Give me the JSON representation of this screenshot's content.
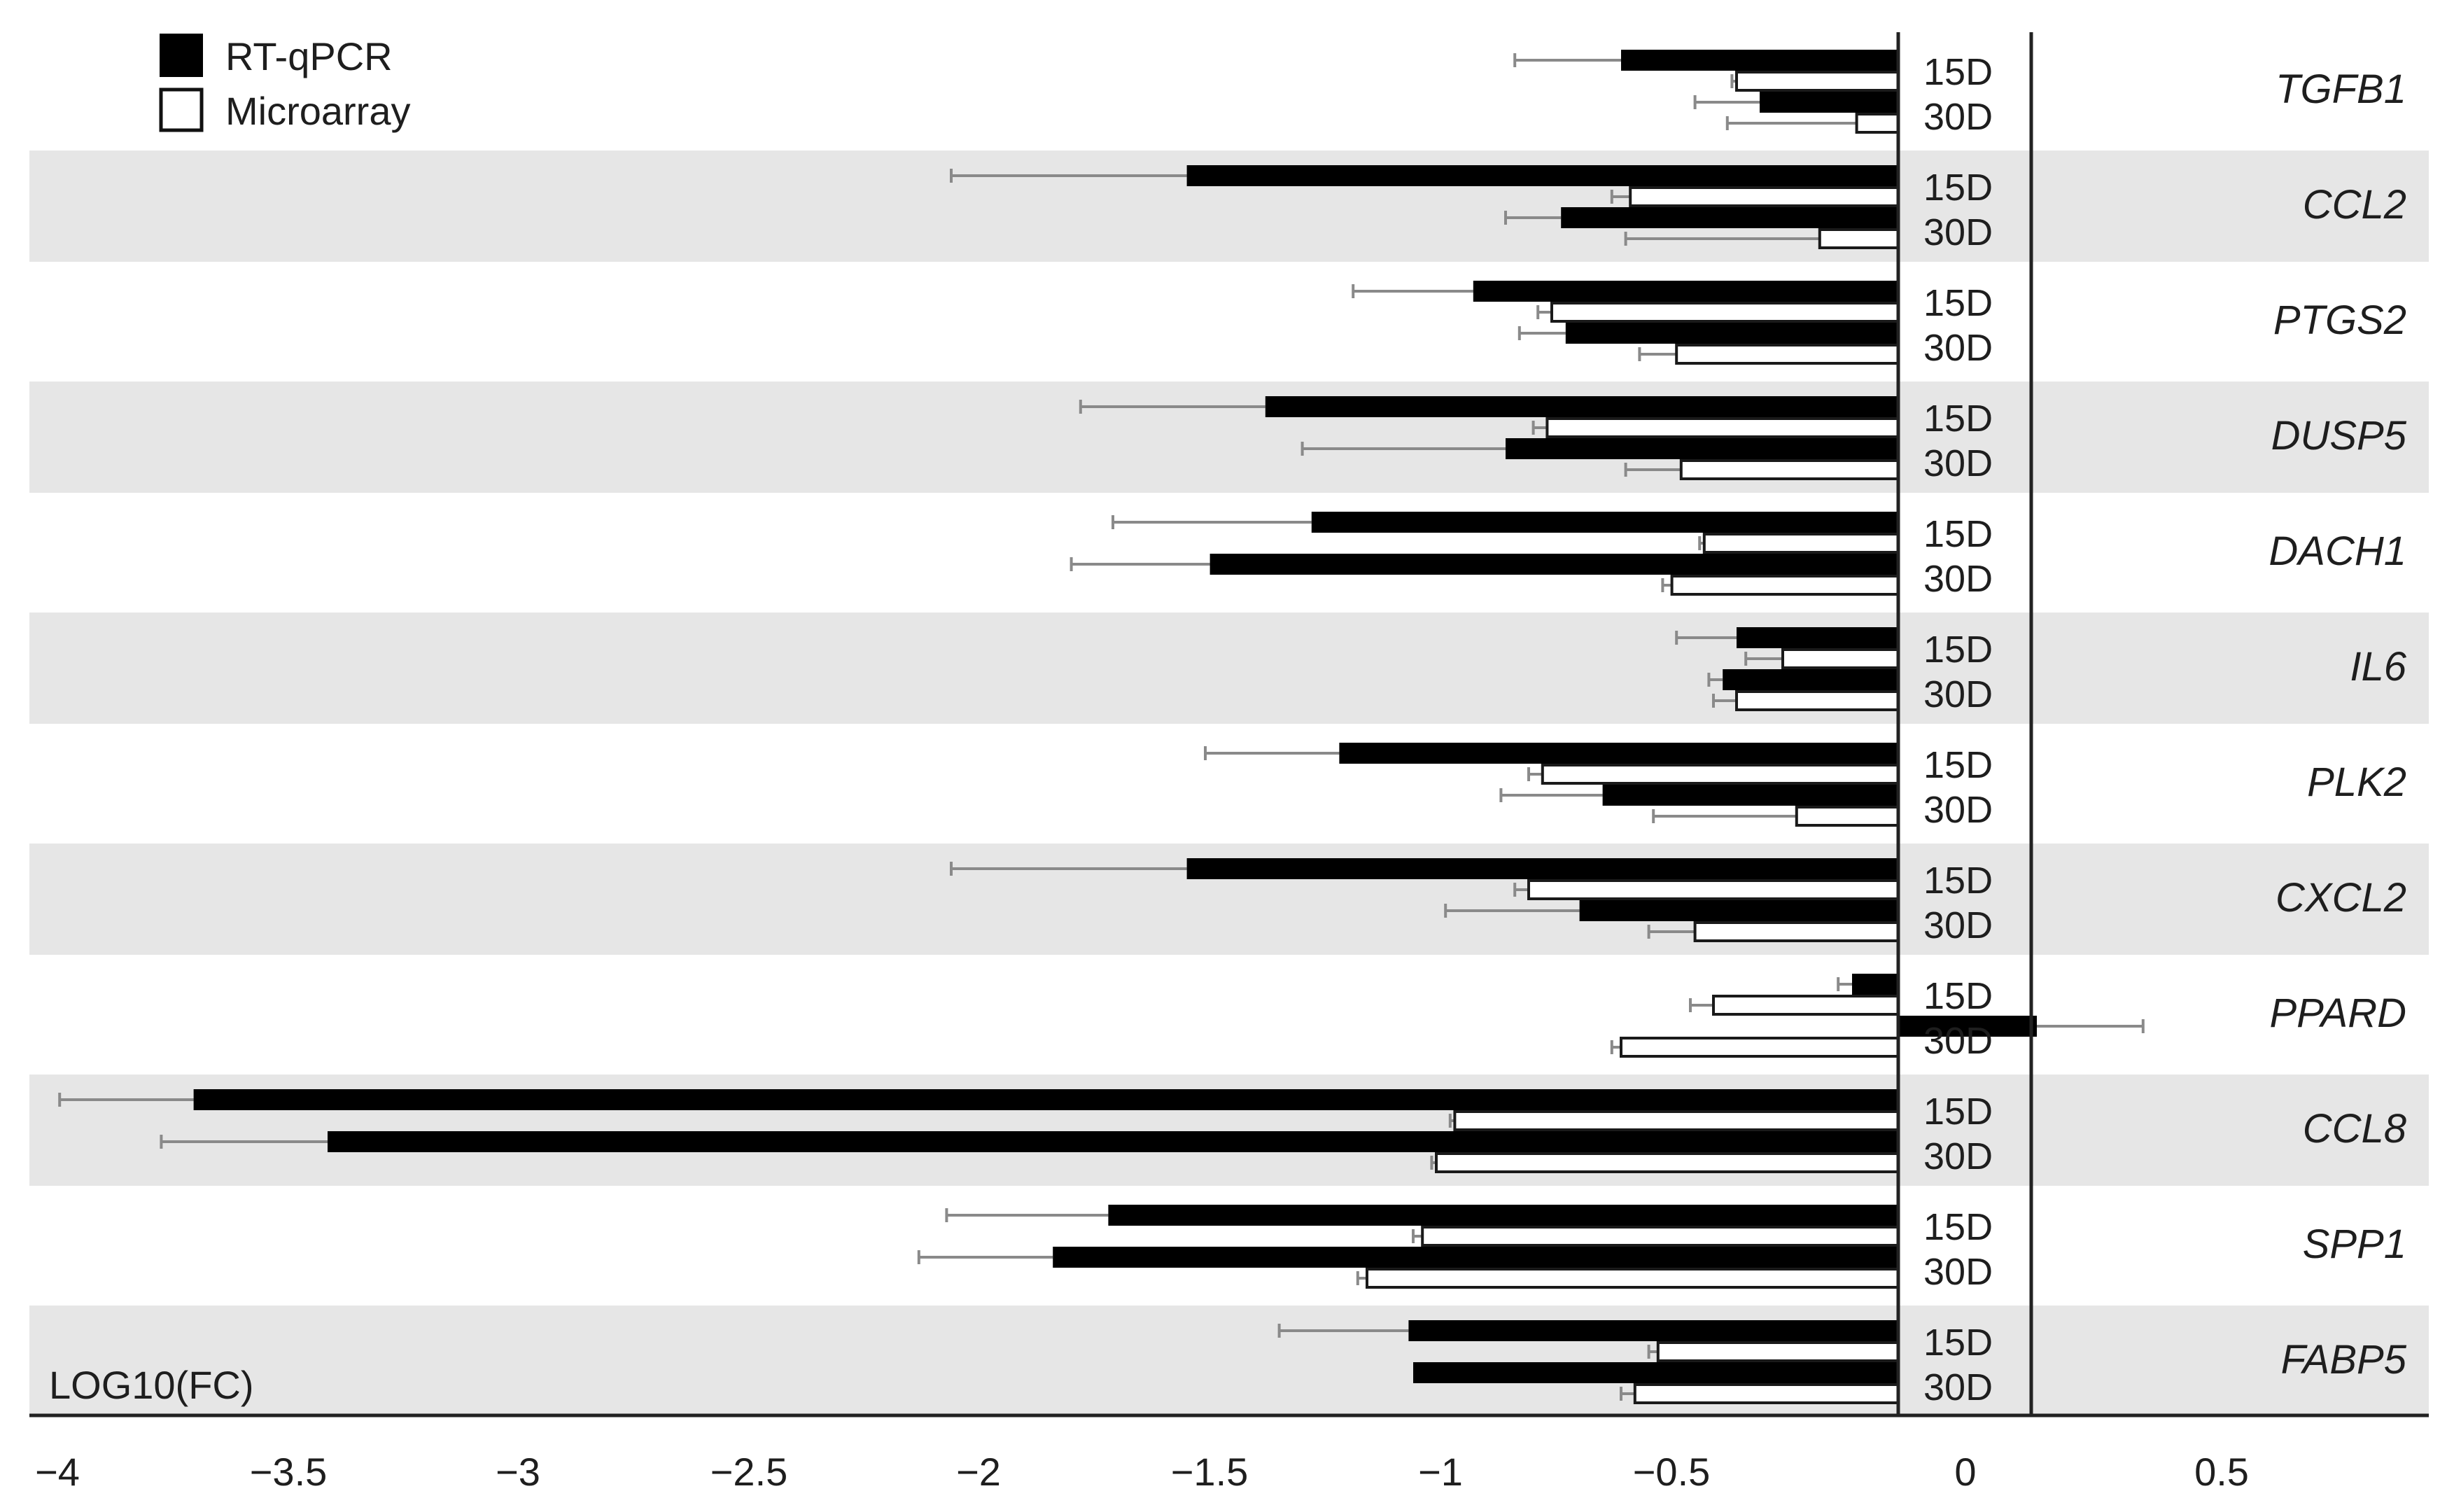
{
  "chart_data": {
    "type": "bar",
    "orientation": "horizontal",
    "xlabel": "LOG10(FC)",
    "xlim": [
      -4,
      0.86
    ],
    "xticks": [
      "-4",
      "-3.5",
      "-3",
      "-2.5",
      "-2",
      "-1.5",
      "-1",
      "-0.5",
      "0",
      "0.5"
    ],
    "xtick_values": [
      -4,
      -3.5,
      -3,
      -2.5,
      -2,
      -1.5,
      -1,
      -0.5,
      0,
      0.5
    ],
    "day_labels": [
      "15D",
      "30D"
    ],
    "row_shading": "alternating light gray",
    "legend": {
      "position": "top-left",
      "entries": [
        {
          "label": "RT-qPCR",
          "color": "#000000"
        },
        {
          "label": "Microarray",
          "color": "#ffffff"
        }
      ]
    },
    "series": [
      {
        "name": "RT-qPCR",
        "color": "#000000"
      },
      {
        "name": "Microarray",
        "color": "#ffffff"
      }
    ],
    "genes": [
      {
        "name": "TGFB1",
        "rt_qpcr": {
          "15D": -0.6,
          "30D": -0.3
        },
        "rt_qpcr_err": {
          "15D": 0.23,
          "30D": 0.14
        },
        "microarray": {
          "15D": -0.35,
          "30D": -0.09
        },
        "microarray_err": {
          "15D": 0.01,
          "30D": 0.28
        }
      },
      {
        "name": "CCL2",
        "rt_qpcr": {
          "15D": -1.54,
          "30D": -0.73
        },
        "rt_qpcr_err": {
          "15D": 0.51,
          "30D": 0.12
        },
        "microarray": {
          "15D": -0.58,
          "30D": -0.17
        },
        "microarray_err": {
          "15D": 0.04,
          "30D": 0.42
        }
      },
      {
        "name": "PTGS2",
        "rt_qpcr": {
          "15D": -0.92,
          "30D": -0.72
        },
        "rt_qpcr_err": {
          "15D": 0.26,
          "30D": 0.1
        },
        "microarray": {
          "15D": -0.75,
          "30D": -0.48
        },
        "microarray_err": {
          "15D": 0.03,
          "30D": 0.08
        }
      },
      {
        "name": "DUSP5",
        "rt_qpcr": {
          "15D": -1.37,
          "30D": -0.85
        },
        "rt_qpcr_err": {
          "15D": 0.4,
          "30D": 0.44
        },
        "microarray": {
          "15D": -0.76,
          "30D": -0.47
        },
        "microarray_err": {
          "15D": 0.03,
          "30D": 0.12
        }
      },
      {
        "name": "DACH1",
        "rt_qpcr": {
          "15D": -1.27,
          "30D": -1.49
        },
        "rt_qpcr_err": {
          "15D": 0.43,
          "30D": 0.3
        },
        "microarray": {
          "15D": -0.42,
          "30D": -0.49
        },
        "microarray_err": {
          "15D": 0.01,
          "30D": 0.02
        }
      },
      {
        "name": "IL6",
        "rt_qpcr": {
          "15D": -0.35,
          "30D": -0.38
        },
        "rt_qpcr_err": {
          "15D": 0.13,
          "30D": 0.03
        },
        "microarray": {
          "15D": -0.25,
          "30D": -0.35
        },
        "microarray_err": {
          "15D": 0.08,
          "30D": 0.05
        }
      },
      {
        "name": "PLK2",
        "rt_qpcr": {
          "15D": -1.21,
          "30D": -0.64
        },
        "rt_qpcr_err": {
          "15D": 0.29,
          "30D": 0.22
        },
        "microarray": {
          "15D": -0.77,
          "30D": -0.22
        },
        "microarray_err": {
          "15D": 0.03,
          "30D": 0.31
        }
      },
      {
        "name": "CXCL2",
        "rt_qpcr": {
          "15D": -1.54,
          "30D": -0.69
        },
        "rt_qpcr_err": {
          "15D": 0.51,
          "30D": 0.29
        },
        "microarray": {
          "15D": -0.8,
          "30D": -0.44
        },
        "microarray_err": {
          "15D": 0.03,
          "30D": 0.1
        }
      },
      {
        "name": "PPARD",
        "rt_qpcr": {
          "15D": -0.1,
          "30D": 0.3
        },
        "rt_qpcr_err": {
          "15D": 0.03,
          "30D": 0.23
        },
        "microarray": {
          "15D": -0.4,
          "30D": -0.6
        },
        "microarray_err": {
          "15D": 0.05,
          "30D": 0.02
        }
      },
      {
        "name": "CCL8",
        "rt_qpcr": {
          "15D": -3.69,
          "30D": -3.4
        },
        "rt_qpcr_err": {
          "15D": 0.29,
          "30D": 0.36
        },
        "microarray": {
          "15D": -0.96,
          "30D": -1.0
        },
        "microarray_err": {
          "15D": 0.01,
          "30D": 0.01
        }
      },
      {
        "name": "SPP1",
        "rt_qpcr": {
          "15D": -1.71,
          "30D": -1.83
        },
        "rt_qpcr_err": {
          "15D": 0.35,
          "30D": 0.29
        },
        "microarray": {
          "15D": -1.03,
          "30D": -1.15
        },
        "microarray_err": {
          "15D": 0.02,
          "30D": 0.02
        }
      },
      {
        "name": "FABP5",
        "rt_qpcr": {
          "15D": -1.06,
          "30D": -1.05
        },
        "rt_qpcr_err": {
          "15D": 0.28,
          "30D": 0.0
        },
        "microarray": {
          "15D": -0.52,
          "30D": -0.57
        },
        "microarray_err": {
          "15D": 0.02,
          "30D": 0.03
        }
      }
    ]
  }
}
